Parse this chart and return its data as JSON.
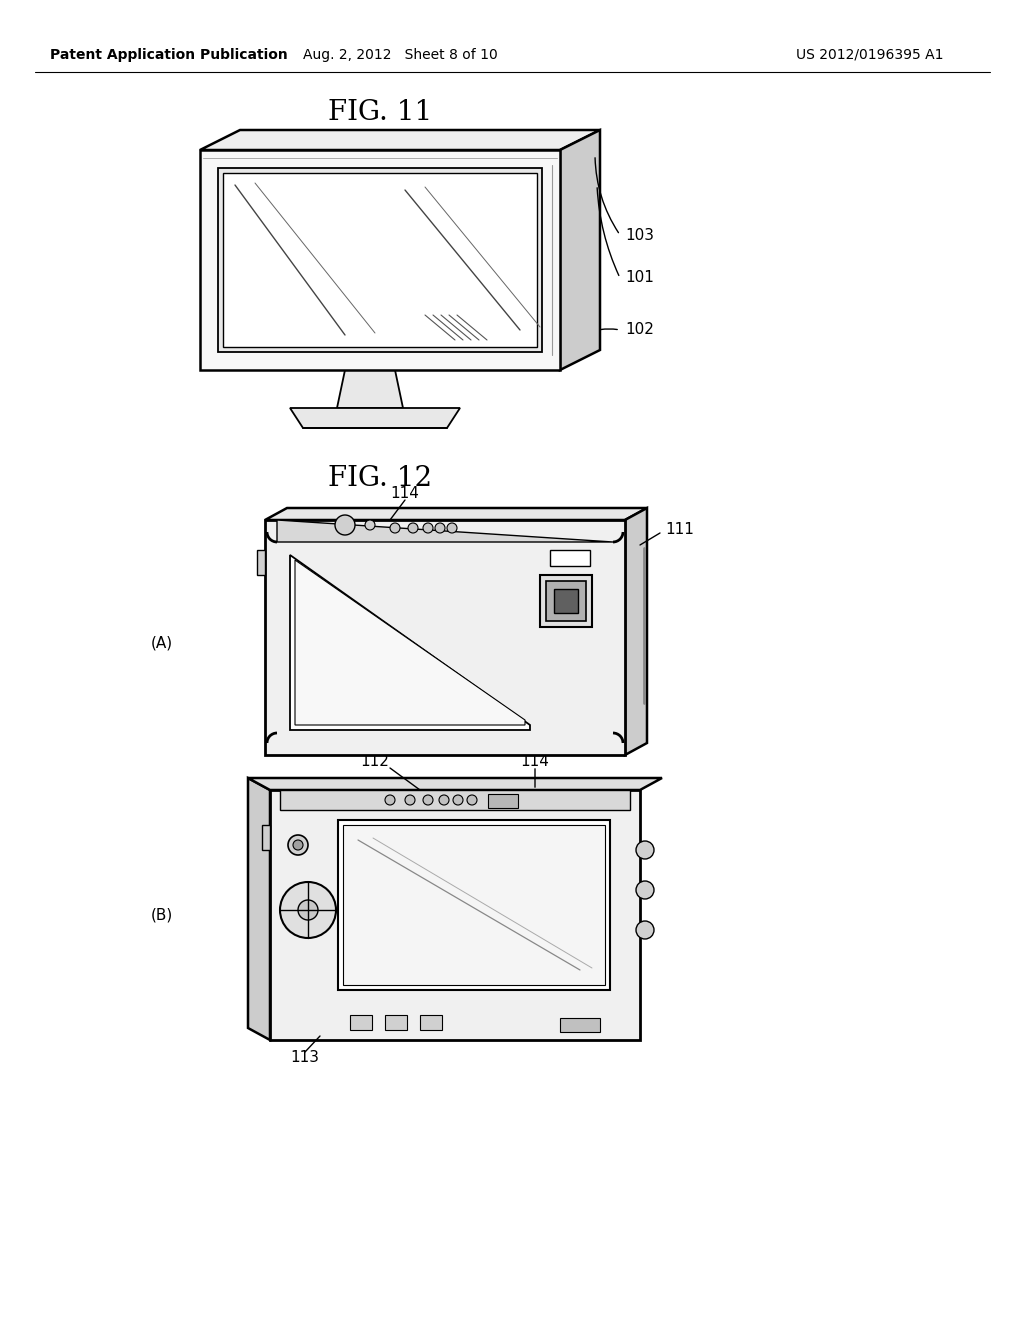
{
  "background_color": "#ffffff",
  "header_left": "Patent Application Publication",
  "header_center": "Aug. 2, 2012   Sheet 8 of 10",
  "header_right": "US 2012/0196395 A1",
  "fig11_label": "FIG. 11",
  "fig12_label": "FIG. 12",
  "label_103": "103",
  "label_101": "101",
  "label_102": "102",
  "label_111": "111",
  "label_112": "112",
  "label_113": "113",
  "label_114_a": "114",
  "label_114_b": "114",
  "label_A": "(A)",
  "label_B": "(B)",
  "text_color": "#000000",
  "line_color": "#000000",
  "lw_main": 1.8,
  "lw_inner": 1.2,
  "lw_thin": 0.8
}
